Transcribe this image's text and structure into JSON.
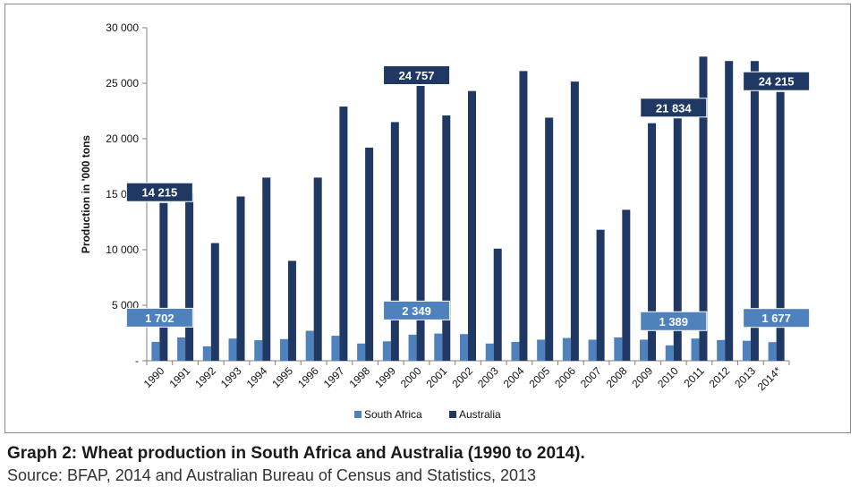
{
  "caption": {
    "title": "Graph 2: Wheat production in South Africa and Australia (1990 to 2014).",
    "source": "Source: BFAP, 2014 and Australian Bureau of Census and Statistics, 2013"
  },
  "colors": {
    "south_africa": "#4f81bd",
    "australia": "#1f3864",
    "callout_sa": "#4f81bd",
    "callout_au": "#1f3864"
  },
  "chart_data": {
    "type": "bar",
    "title": "",
    "xlabel": "",
    "ylabel": "Production in '000 tons",
    "ylim": [
      0,
      30000
    ],
    "yticks": [
      0,
      5000,
      10000,
      15000,
      20000,
      25000,
      30000
    ],
    "ytick_labels": [
      "-",
      "5 000",
      "10 000",
      "15 000",
      "20 000",
      "25 000",
      "30 000"
    ],
    "grid": false,
    "legend_position": "bottom",
    "categories": [
      "1990",
      "1991",
      "1992",
      "1993",
      "1994",
      "1995",
      "1996",
      "1997",
      "1998",
      "1999",
      "2000",
      "2001",
      "2002",
      "2003",
      "2004",
      "2005",
      "2006",
      "2007",
      "2008",
      "2009",
      "2010",
      "2011",
      "2012",
      "2013",
      "2014*"
    ],
    "series": [
      {
        "name": "South Africa",
        "values": [
          1702,
          2100,
          1300,
          2000,
          1850,
          1950,
          2700,
          2250,
          1550,
          1750,
          2349,
          2450,
          2400,
          1550,
          1700,
          1900,
          2050,
          1900,
          2100,
          1900,
          1389,
          2000,
          1870,
          1800,
          1677
        ]
      },
      {
        "name": "Australia",
        "values": [
          14215,
          15100,
          10600,
          14800,
          16500,
          9000,
          16500,
          22900,
          19200,
          21500,
          24757,
          22100,
          24300,
          10100,
          26100,
          21900,
          25150,
          11800,
          13600,
          21400,
          21834,
          27400,
          27000,
          27000,
          24215
        ]
      }
    ],
    "annotations": [
      {
        "series": "Australia",
        "category": "1990",
        "label": "14 215"
      },
      {
        "series": "Australia",
        "category": "2000",
        "label": "24 757"
      },
      {
        "series": "Australia",
        "category": "2010",
        "label": "21 834"
      },
      {
        "series": "Australia",
        "category": "2014*",
        "label": "24 215"
      },
      {
        "series": "South Africa",
        "category": "1990",
        "label": "1 702"
      },
      {
        "series": "South Africa",
        "category": "2000",
        "label": "2 349"
      },
      {
        "series": "South Africa",
        "category": "2010",
        "label": "1 389"
      },
      {
        "series": "South Africa",
        "category": "2014*",
        "label": "1 677"
      }
    ]
  }
}
